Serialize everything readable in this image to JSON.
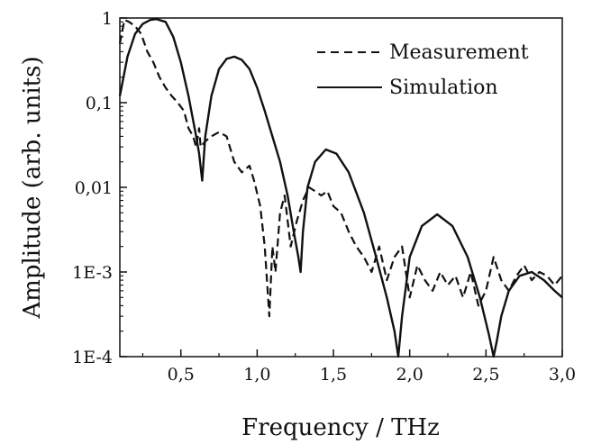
{
  "chart_data": {
    "type": "line",
    "xlabel": "Frequency / THz",
    "ylabel": "Amplitude (arb. units)",
    "xlim": [
      0.1,
      3.0
    ],
    "ylim": [
      0.0001,
      1
    ],
    "yscale": "log",
    "grid": false,
    "legend_position": "top-right",
    "x_ticks": [
      0.5,
      1.0,
      1.5,
      2.0,
      2.5,
      3.0
    ],
    "x_tick_labels": [
      "0,5",
      "1,0",
      "1,5",
      "2,0",
      "2,5",
      "3,0"
    ],
    "y_ticks": [
      0.0001,
      0.001,
      0.01,
      0.1,
      1
    ],
    "y_tick_labels": [
      "1E-4",
      "1E-3",
      "0,01",
      "0,1",
      "1"
    ],
    "series": [
      {
        "name": "Measurement",
        "style": "dashed",
        "color": "#111111",
        "x": [
          0.1,
          0.13,
          0.16,
          0.2,
          0.24,
          0.28,
          0.32,
          0.36,
          0.4,
          0.44,
          0.48,
          0.52,
          0.55,
          0.58,
          0.6,
          0.62,
          0.63,
          0.66,
          0.7,
          0.75,
          0.8,
          0.85,
          0.9,
          0.95,
          0.98,
          1.02,
          1.05,
          1.08,
          1.1,
          1.12,
          1.15,
          1.18,
          1.22,
          1.26,
          1.3,
          1.34,
          1.38,
          1.42,
          1.46,
          1.5,
          1.55,
          1.6,
          1.65,
          1.7,
          1.75,
          1.8,
          1.85,
          1.9,
          1.95,
          2.0,
          2.05,
          2.1,
          2.15,
          2.2,
          2.25,
          2.3,
          2.35,
          2.4,
          2.45,
          2.5,
          2.55,
          2.6,
          2.65,
          2.7,
          2.75,
          2.8,
          2.85,
          2.9,
          2.95,
          3.0
        ],
        "y": [
          0.5,
          0.95,
          0.9,
          0.8,
          0.65,
          0.4,
          0.3,
          0.2,
          0.15,
          0.12,
          0.1,
          0.08,
          0.05,
          0.04,
          0.03,
          0.05,
          0.03,
          0.035,
          0.04,
          0.045,
          0.04,
          0.02,
          0.015,
          0.018,
          0.012,
          0.006,
          0.002,
          0.0003,
          0.002,
          0.001,
          0.005,
          0.008,
          0.002,
          0.004,
          0.007,
          0.01,
          0.009,
          0.008,
          0.009,
          0.006,
          0.005,
          0.003,
          0.002,
          0.0015,
          0.001,
          0.002,
          0.0008,
          0.0015,
          0.002,
          0.0005,
          0.0012,
          0.0008,
          0.0006,
          0.001,
          0.0007,
          0.0009,
          0.0005,
          0.001,
          0.0004,
          0.0006,
          0.0015,
          0.0008,
          0.0006,
          0.0009,
          0.0012,
          0.0008,
          0.001,
          0.0009,
          0.0007,
          0.0009
        ]
      },
      {
        "name": "Simulation",
        "style": "solid",
        "color": "#111111",
        "x": [
          0.1,
          0.15,
          0.2,
          0.25,
          0.3,
          0.34,
          0.4,
          0.45,
          0.5,
          0.55,
          0.6,
          0.62,
          0.64,
          0.66,
          0.7,
          0.75,
          0.8,
          0.85,
          0.9,
          0.95,
          1.0,
          1.05,
          1.1,
          1.15,
          1.2,
          1.24,
          1.27,
          1.285,
          1.3,
          1.33,
          1.38,
          1.45,
          1.52,
          1.6,
          1.7,
          1.78,
          1.85,
          1.9,
          1.925,
          1.95,
          2.0,
          2.08,
          2.18,
          2.28,
          2.38,
          2.46,
          2.52,
          2.55,
          2.57,
          2.6,
          2.65,
          2.72,
          2.8,
          2.88,
          2.95,
          3.0
        ],
        "y": [
          0.12,
          0.35,
          0.65,
          0.85,
          0.95,
          0.97,
          0.9,
          0.6,
          0.3,
          0.12,
          0.04,
          0.025,
          0.012,
          0.04,
          0.12,
          0.25,
          0.33,
          0.35,
          0.32,
          0.25,
          0.15,
          0.08,
          0.04,
          0.02,
          0.008,
          0.003,
          0.0015,
          0.001,
          0.003,
          0.01,
          0.02,
          0.028,
          0.025,
          0.015,
          0.005,
          0.0015,
          0.0005,
          0.0002,
          0.0001,
          0.0003,
          0.0015,
          0.0035,
          0.0048,
          0.0035,
          0.0015,
          0.0005,
          0.00018,
          0.0001,
          0.00015,
          0.0003,
          0.0006,
          0.0009,
          0.001,
          0.0008,
          0.0006,
          0.0005
        ]
      }
    ]
  }
}
